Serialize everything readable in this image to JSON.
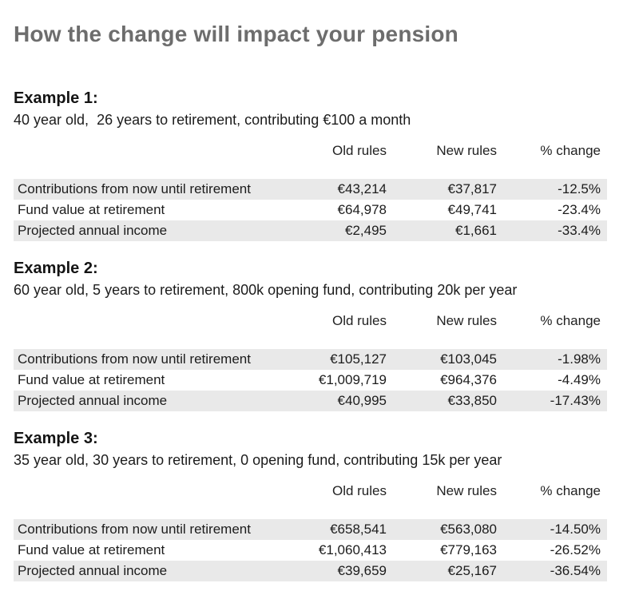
{
  "page": {
    "title": "How the change will impact your pension"
  },
  "colors": {
    "title_gray": "#6d6d6d",
    "row_stripe": "#e9e9e9",
    "text": "#1c1c1c"
  },
  "examples": [
    {
      "heading": "Example 1:",
      "subtitle": "40 year old,  26 years to retirement, contributing €100 a month",
      "columns": {
        "old": "Old rules",
        "new": "New rules",
        "change": "% change"
      },
      "rows": [
        {
          "label": "Contributions from now until retirement",
          "old": "€43,214",
          "new": "€37,817",
          "change": "-12.5%"
        },
        {
          "label": "Fund value at retirement",
          "old": "€64,978",
          "new": "€49,741",
          "change": "-23.4%"
        },
        {
          "label": "Projected annual income",
          "old": "€2,495",
          "new": "€1,661",
          "change": "-33.4%"
        }
      ]
    },
    {
      "heading": "Example 2:",
      "subtitle": "60 year old, 5 years to retirement, 800k opening fund, contributing 20k per year",
      "columns": {
        "old": "Old rules",
        "new": "New rules",
        "change": "% change"
      },
      "rows": [
        {
          "label": "Contributions from now until retirement",
          "old": "€105,127",
          "new": "€103,045",
          "change": "-1.98%"
        },
        {
          "label": "Fund value at retirement",
          "old": "€1,009,719",
          "new": "€964,376",
          "change": "-4.49%"
        },
        {
          "label": "Projected annual income",
          "old": "€40,995",
          "new": "€33,850",
          "change": "-17.43%"
        }
      ]
    },
    {
      "heading": "Example 3:",
      "subtitle": "35 year old, 30 years to retirement, 0 opening fund, contributing 15k per year",
      "columns": {
        "old": "Old rules",
        "new": "New rules",
        "change": "% change"
      },
      "rows": [
        {
          "label": "Contributions from now until retirement",
          "old": "€658,541",
          "new": "€563,080",
          "change": "-14.50%"
        },
        {
          "label": "Fund value at retirement",
          "old": "€1,060,413",
          "new": "€779,163",
          "change": "-26.52%"
        },
        {
          "label": "Projected annual income",
          "old": "€39,659",
          "new": "€25,167",
          "change": "-36.54%"
        }
      ]
    }
  ]
}
